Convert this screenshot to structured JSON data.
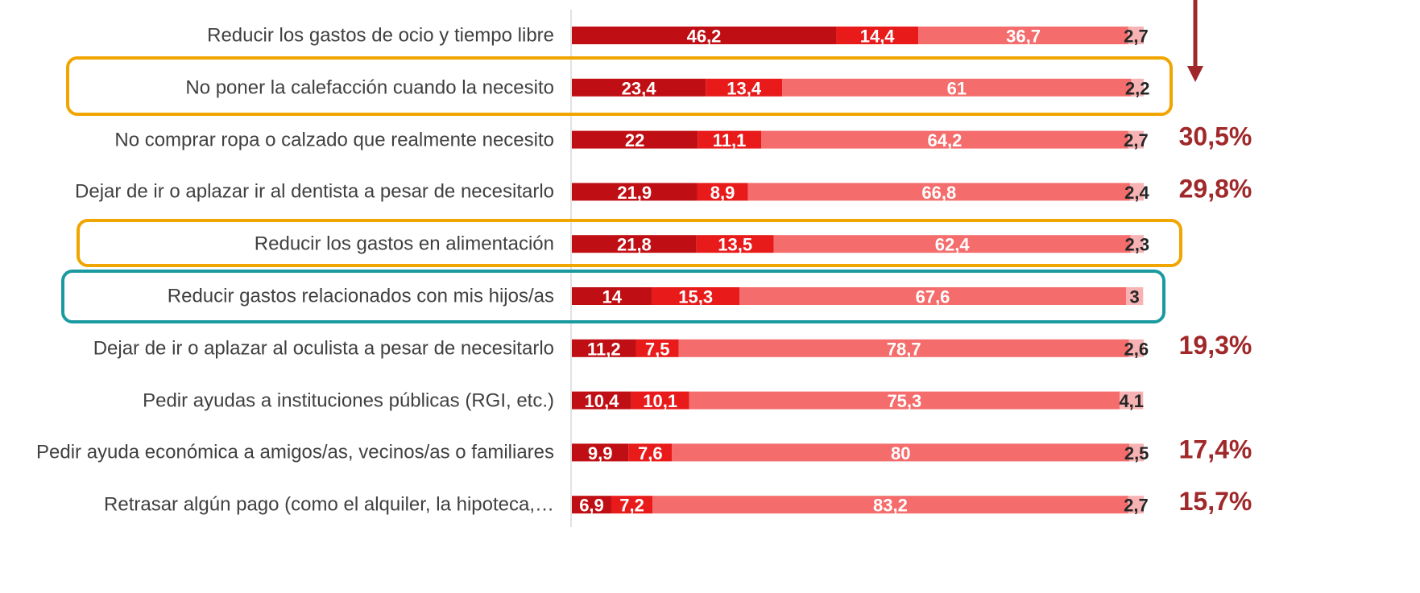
{
  "chart_data": {
    "type": "stacked_bar_horizontal",
    "categories": [
      "Reducir los gastos de ocio y tiempo libre",
      "No poner la calefacción cuando la necesito",
      "No comprar ropa o calzado que realmente necesito",
      "Dejar de ir o aplazar ir al dentista a pesar de necesitarlo",
      "Reducir los gastos en alimentación",
      "Reducir gastos relacionados con mis hijos/as",
      "Dejar de ir o aplazar al oculista a pesar de necesitarlo",
      "Pedir ayudas a instituciones públicas (RGI, etc.)",
      "Pedir ayuda económica a amigos/as, vecinos/as o familiares",
      "Retrasar algún pago (como el alquiler, la hipoteca,…"
    ],
    "series": [
      {
        "color": "#c00f14",
        "values": [
          46.2,
          23.4,
          22,
          21.9,
          21.8,
          14,
          11.2,
          10.4,
          9.9,
          6.9
        ],
        "value_labels": [
          "46,2",
          "23,4",
          "22",
          "21,9",
          "21,8",
          "14",
          "11,2",
          "10,4",
          "9,9",
          "6,9"
        ]
      },
      {
        "color": "#e81a1a",
        "values": [
          14.4,
          13.4,
          11.1,
          8.9,
          13.5,
          15.3,
          7.5,
          10.1,
          7.6,
          7.2
        ],
        "value_labels": [
          "14,4",
          "13,4",
          "11,1",
          "8,9",
          "13,5",
          "15,3",
          "7,5",
          "10,1",
          "7,6",
          "7,2"
        ]
      },
      {
        "color": "#f46c6c",
        "values": [
          36.7,
          61,
          64.2,
          66.8,
          62.4,
          67.6,
          78.7,
          75.3,
          80,
          83.2
        ],
        "value_labels": [
          "36,7",
          "61",
          "64,2",
          "66,8",
          "62,4",
          "67,6",
          "78,7",
          "75,3",
          "80",
          "83,2"
        ]
      },
      {
        "color": "#f7b3b3",
        "values": [
          2.7,
          2.2,
          2.7,
          2.4,
          2.3,
          3,
          2.6,
          4.1,
          2.5,
          2.7
        ],
        "value_labels": [
          "2,7",
          "2,2",
          "2,7",
          "2,4",
          "2,3",
          "3",
          "2,6",
          "4,1",
          "2,5",
          "2,7"
        ]
      }
    ],
    "xlim": [
      0,
      100
    ],
    "annotations": [
      null,
      null,
      "30,5%",
      "29,8%",
      null,
      null,
      "19,3%",
      null,
      "17,4%",
      "15,7%"
    ]
  }
}
